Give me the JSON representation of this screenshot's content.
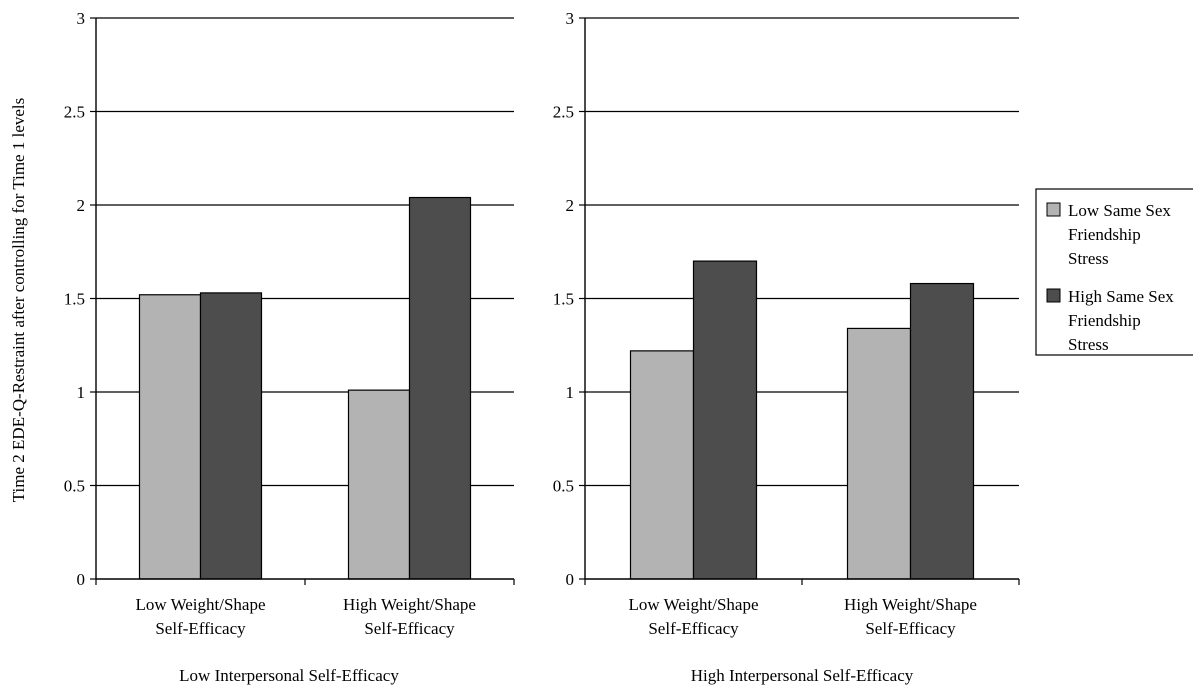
{
  "chart_data": {
    "type": "bar",
    "ylabel": "Time 2 EDE-Q-Restraint after controlling for Time 1 levels",
    "ylim": [
      0,
      3
    ],
    "yticks": [
      "0",
      "0.5",
      "1",
      "1.5",
      "2",
      "2.5",
      "3"
    ],
    "grid": true,
    "legend_position": "right",
    "colors": {
      "low": "#b3b3b3",
      "high": "#4d4d4d"
    },
    "legend": [
      {
        "lines": [
          "Low Same Sex",
          "Friendship",
          "Stress"
        ]
      },
      {
        "lines": [
          "High Same Sex",
          "Friendship",
          "Stress"
        ]
      }
    ],
    "panels": [
      {
        "xlabel": "Low Interpersonal Self-Efficacy",
        "categories": [
          {
            "lines": [
              "Low Weight/Shape",
              "Self-Efficacy"
            ]
          },
          {
            "lines": [
              "High Weight/Shape",
              "Self-Efficacy"
            ]
          }
        ],
        "series": [
          {
            "values": [
              1.52,
              1.01
            ]
          },
          {
            "values": [
              1.53,
              2.04
            ]
          }
        ]
      },
      {
        "xlabel": "High Interpersonal Self-Efficacy",
        "categories": [
          {
            "lines": [
              "Low Weight/Shape",
              "Self-Efficacy"
            ]
          },
          {
            "lines": [
              "High Weight/Shape",
              "Self-Efficacy"
            ]
          }
        ],
        "series": [
          {
            "values": [
              1.22,
              1.34
            ]
          },
          {
            "values": [
              1.7,
              1.58
            ]
          }
        ]
      }
    ]
  }
}
